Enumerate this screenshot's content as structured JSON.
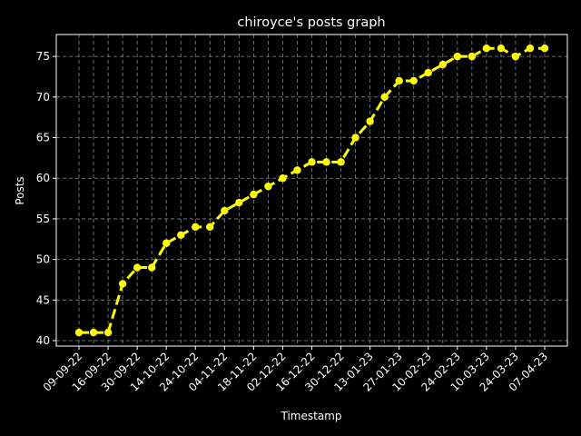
{
  "chart_data": {
    "type": "line",
    "title": "chiroyce's posts graph",
    "x_label": "Timestamp",
    "y_label": "Posts",
    "categories": [
      "09-09-22",
      null,
      "16-09-22",
      null,
      "30-09-22",
      null,
      "14-10-22",
      null,
      "24-10-22",
      null,
      "04-11-22",
      null,
      "18-11-22",
      null,
      "02-12-22",
      null,
      "16-12-22",
      null,
      "30-12-22",
      null,
      "13-01-23",
      null,
      "27-01-23",
      null,
      "10-02-23",
      null,
      "24-02-23",
      null,
      "10-03-23",
      null,
      "24-03-23",
      null,
      "07-04-23"
    ],
    "series": [
      {
        "name": "Posts",
        "color": "#ffff00",
        "values": [
          41,
          41,
          41,
          47,
          49,
          49,
          52,
          53,
          54,
          54,
          56,
          57,
          58,
          59,
          60,
          61,
          62,
          62,
          62,
          65,
          67,
          70,
          72,
          72,
          73,
          74,
          75,
          75,
          76,
          76,
          75,
          76,
          76
        ]
      }
    ],
    "ylim": [
      39.33,
      77.7
    ],
    "yticks": [
      40,
      45,
      50,
      55,
      60,
      65,
      70,
      75
    ],
    "grid": true
  }
}
